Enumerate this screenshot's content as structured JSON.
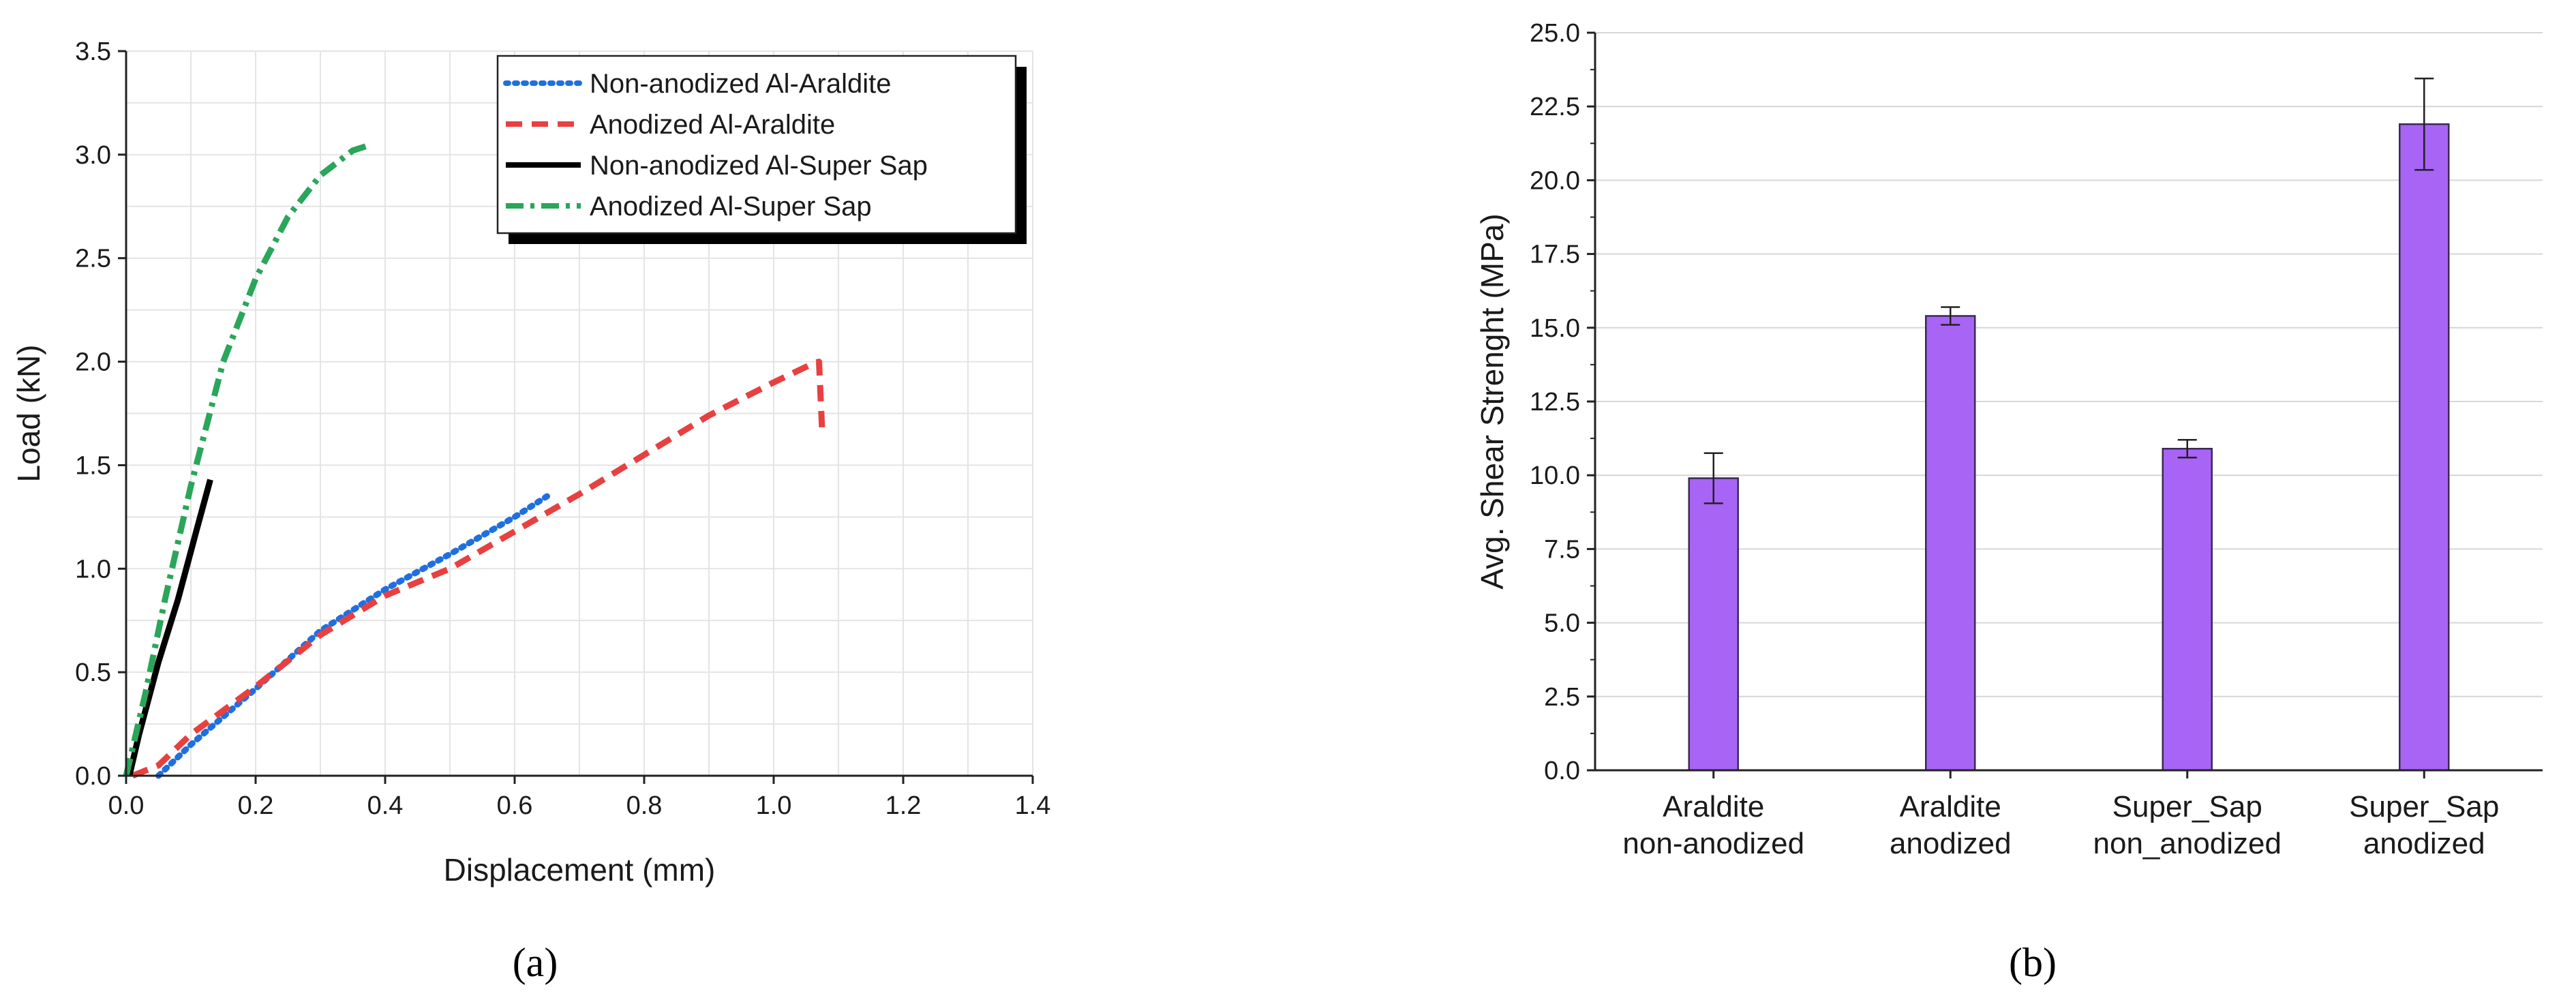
{
  "chart_data": [
    {
      "type": "line",
      "panel_label": "(a)",
      "xlabel": "Displacement (mm)",
      "ylabel": "Load (kN)",
      "xlim": [
        0,
        1.4
      ],
      "ylim": [
        0,
        3.5
      ],
      "xticks": [
        "0.0",
        "0.2",
        "0.4",
        "0.6",
        "0.8",
        "1.0",
        "1.2",
        "1.4"
      ],
      "yticks": [
        "0.0",
        "0.5",
        "1.0",
        "1.5",
        "2.0",
        "2.5",
        "3.0",
        "3.5"
      ],
      "grid": true,
      "legend_position": "top-right",
      "series": [
        {
          "name": "Non-anodized Al-Araldite",
          "color": "#1f6fe0",
          "style": "dotted",
          "points": [
            [
              0.05,
              0.0
            ],
            [
              0.1,
              0.15
            ],
            [
              0.2,
              0.42
            ],
            [
              0.3,
              0.7
            ],
            [
              0.4,
              0.9
            ],
            [
              0.5,
              1.07
            ],
            [
              0.6,
              1.25
            ],
            [
              0.65,
              1.35
            ]
          ]
        },
        {
          "name": "Anodized Al-Araldite",
          "color": "#e84040",
          "style": "dashed",
          "points": [
            [
              0.01,
              0.0
            ],
            [
              0.05,
              0.05
            ],
            [
              0.1,
              0.2
            ],
            [
              0.2,
              0.43
            ],
            [
              0.3,
              0.68
            ],
            [
              0.4,
              0.87
            ],
            [
              0.5,
              1.0
            ],
            [
              0.6,
              1.18
            ],
            [
              0.7,
              1.36
            ],
            [
              0.8,
              1.55
            ],
            [
              0.9,
              1.74
            ],
            [
              1.0,
              1.9
            ],
            [
              1.06,
              1.99
            ],
            [
              1.07,
              2.0
            ],
            [
              1.075,
              1.65
            ]
          ]
        },
        {
          "name": "Non-anodized Al-Super Sap",
          "color": "#000000",
          "style": "solid",
          "points": [
            [
              0.005,
              0.0
            ],
            [
              0.02,
              0.2
            ],
            [
              0.05,
              0.55
            ],
            [
              0.08,
              0.85
            ],
            [
              0.11,
              1.2
            ],
            [
              0.13,
              1.43
            ]
          ]
        },
        {
          "name": "Anodized Al-Super Sap",
          "color": "#2aa65a",
          "style": "dashdot",
          "points": [
            [
              0.0,
              0.0
            ],
            [
              0.03,
              0.4
            ],
            [
              0.06,
              0.85
            ],
            [
              0.1,
              1.4
            ],
            [
              0.15,
              2.0
            ],
            [
              0.2,
              2.4
            ],
            [
              0.25,
              2.7
            ],
            [
              0.3,
              2.9
            ],
            [
              0.35,
              3.02
            ],
            [
              0.37,
              3.04
            ]
          ]
        }
      ]
    },
    {
      "type": "bar",
      "panel_label": "(b)",
      "xlabel": "",
      "ylabel": "Avg. Shear Strenght (MPa)",
      "ylim": [
        0,
        25
      ],
      "yticks": [
        "0.0",
        "2.5",
        "5.0",
        "7.5",
        "10.0",
        "12.5",
        "15.0",
        "17.5",
        "20.0",
        "22.5",
        "25.0"
      ],
      "grid": true,
      "bar_color": "#a864f5",
      "categories": [
        [
          "Araldite",
          "non-anodized"
        ],
        [
          "Araldite",
          "anodized"
        ],
        [
          "Super_Sap",
          "non_anodized"
        ],
        [
          "Super_Sap",
          "anodized"
        ]
      ],
      "values": [
        9.9,
        15.4,
        10.9,
        21.9
      ],
      "errors": [
        0.85,
        0.3,
        0.3,
        1.55
      ]
    }
  ]
}
